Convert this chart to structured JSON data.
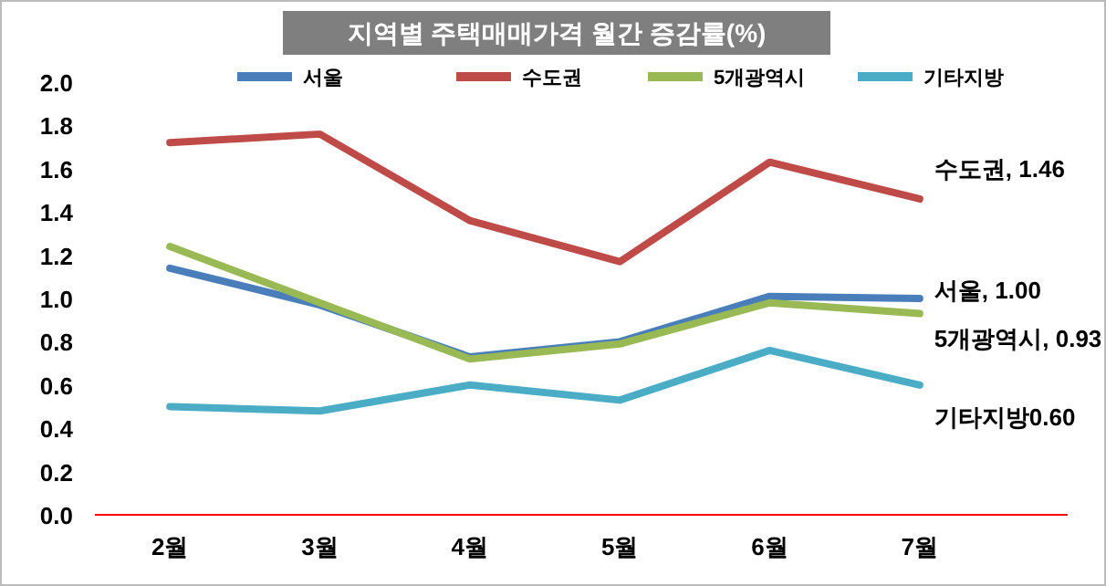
{
  "chart_data": {
    "type": "line",
    "title": "지역별 주택매매가격 월간 증감률(%)",
    "categories": [
      "2월",
      "3월",
      "4월",
      "5월",
      "6월",
      "7월"
    ],
    "series": [
      {
        "name": "서울",
        "color": "#4a7ebb",
        "values": [
          1.14,
          0.97,
          0.73,
          0.8,
          1.01,
          1.0
        ]
      },
      {
        "name": "수도권",
        "color": "#be4b48",
        "values": [
          1.72,
          1.76,
          1.36,
          1.17,
          1.63,
          1.46
        ]
      },
      {
        "name": "5개광역시",
        "color": "#98b954",
        "values": [
          1.24,
          0.98,
          0.72,
          0.79,
          0.98,
          0.93
        ]
      },
      {
        "name": "기타지방",
        "color": "#4bacc6",
        "values": [
          0.5,
          0.48,
          0.6,
          0.53,
          0.76,
          0.6
        ]
      }
    ],
    "ylim": [
      0,
      2
    ],
    "yticks": [
      {
        "value": 0,
        "label": "0.0"
      },
      {
        "value": 0.2,
        "label": "0.2"
      },
      {
        "value": 0.4,
        "label": "0.4"
      },
      {
        "value": 0.6,
        "label": "0.6"
      },
      {
        "value": 0.8,
        "label": "0.8"
      },
      {
        "value": 1,
        "label": "1.0"
      },
      {
        "value": 1.2,
        "label": "1.2"
      },
      {
        "value": 1.4,
        "label": "1.4"
      },
      {
        "value": 1.6,
        "label": "1.6"
      },
      {
        "value": 1.8,
        "label": "1.8"
      },
      {
        "value": 2,
        "label": "2.0"
      }
    ],
    "grid": false,
    "legend": "top",
    "marker": "none",
    "line_style": "solid",
    "annotations": [
      {
        "text": "수도권, 1.46",
        "x": "7월",
        "y": 1.46
      },
      {
        "text": "서울, 1.00",
        "x": "7월",
        "y": 1.0
      },
      {
        "text": "5개광역시, 0.93",
        "x": "7월",
        "y": 0.93
      },
      {
        "text": "기타지방0.60",
        "x": "7월",
        "y": 0.6
      }
    ]
  }
}
